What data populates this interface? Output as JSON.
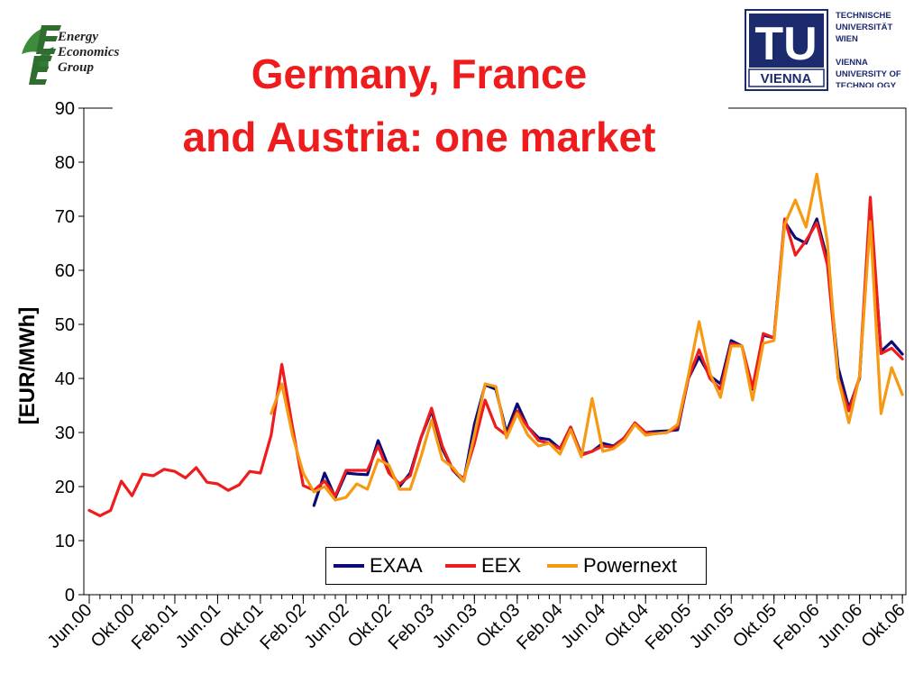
{
  "header": {
    "title_line1": "Germany, France",
    "title_line2": "and Austria: one market",
    "eeg_logo": {
      "line1": "Energy",
      "line2": "Economics",
      "line3": "Group",
      "icon": "leaf-e-logo"
    },
    "tu_logo": {
      "mark": "TU",
      "word": "VIENNA",
      "text_lines": [
        "TECHNISCHE",
        "UNIVERSITÄT",
        "WIEN",
        "VIENNA",
        "UNIVERSITY OF",
        "TECHNOLOGY"
      ],
      "color": "#1c2a6e"
    }
  },
  "chart_data": {
    "type": "line",
    "title": "Germany, France and Austria: one market",
    "xlabel": "",
    "ylabel": "[EUR/MWh]",
    "ylim": [
      0,
      90
    ],
    "yticks": [
      0,
      10,
      20,
      30,
      40,
      50,
      60,
      70,
      80,
      90
    ],
    "x_count": 77,
    "xtick_labels": [
      {
        "index": 0,
        "label": "Jun.00"
      },
      {
        "index": 4,
        "label": "Okt.00"
      },
      {
        "index": 8,
        "label": "Feb.01"
      },
      {
        "index": 12,
        "label": "Jun.01"
      },
      {
        "index": 16,
        "label": "Okt.01"
      },
      {
        "index": 20,
        "label": "Feb.02"
      },
      {
        "index": 24,
        "label": "Jun.02"
      },
      {
        "index": 28,
        "label": "Okt.02"
      },
      {
        "index": 32,
        "label": "Feb.03"
      },
      {
        "index": 36,
        "label": "Jun.03"
      },
      {
        "index": 40,
        "label": "Okt.03"
      },
      {
        "index": 44,
        "label": "Feb.04"
      },
      {
        "index": 48,
        "label": "Jun.04"
      },
      {
        "index": 52,
        "label": "Okt.04"
      },
      {
        "index": 56,
        "label": "Feb.05"
      },
      {
        "index": 60,
        "label": "Jun.05"
      },
      {
        "index": 64,
        "label": "Okt.05"
      },
      {
        "index": 68,
        "label": "Feb.06"
      },
      {
        "index": 72,
        "label": "Jun.06"
      },
      {
        "index": 76,
        "label": "Okt.06"
      }
    ],
    "grid": false,
    "legend_position": "bottom-center",
    "series": [
      {
        "name": "EXAA",
        "color": "#0a0a78",
        "start_index": 21,
        "values": [
          16.5,
          22.5,
          18.0,
          22.5,
          22.3,
          22.2,
          28.5,
          23.5,
          20.0,
          22.5,
          29.0,
          34.0,
          27.0,
          23.0,
          21.0,
          31.5,
          38.8,
          38.0,
          30.0,
          35.3,
          31.0,
          29.0,
          28.7,
          27.0,
          31.0,
          26.0,
          26.5,
          28.0,
          27.5,
          29.0,
          31.7,
          30.0,
          30.2,
          30.3,
          30.5,
          40.0,
          44.0,
          40.5,
          39.0,
          47.0,
          46.0,
          38.0,
          48.0,
          47.5,
          69.0,
          66.0,
          65.0,
          69.5,
          62.0,
          42.0,
          34.5,
          40.0,
          72.0,
          45.0,
          46.8,
          44.5
        ]
      },
      {
        "name": "EEX",
        "color": "#ee1c1c",
        "start_index": 0,
        "values": [
          15.6,
          14.6,
          15.6,
          21.0,
          18.3,
          22.3,
          22.0,
          23.2,
          22.8,
          21.6,
          23.5,
          20.8,
          20.5,
          19.3,
          20.3,
          22.8,
          22.5,
          29.5,
          42.6,
          31.0,
          20.2,
          19.3,
          21.0,
          18.3,
          23.0,
          23.0,
          23.0,
          27.5,
          22.5,
          20.5,
          22.0,
          29.0,
          34.5,
          27.5,
          23.0,
          21.5,
          28.0,
          36.0,
          31.0,
          29.5,
          34.0,
          31.0,
          28.5,
          28.0,
          27.0,
          31.0,
          25.8,
          26.5,
          27.5,
          27.3,
          29.0,
          31.8,
          30.0,
          29.8,
          30.0,
          31.0,
          40.0,
          45.3,
          40.0,
          38.0,
          46.5,
          46.0,
          38.3,
          48.3,
          47.5,
          69.5,
          62.8,
          65.5,
          68.8,
          61.0,
          40.0,
          34.0,
          40.3,
          73.5,
          44.6,
          45.6,
          43.6
        ]
      },
      {
        "name": "Powernext",
        "color": "#f59a12",
        "start_index": 17,
        "values": [
          33.5,
          39.0,
          29.5,
          22.5,
          19.0,
          20.0,
          17.5,
          18.0,
          20.5,
          19.5,
          25.0,
          24.0,
          19.5,
          19.5,
          25.5,
          32.3,
          25.0,
          23.5,
          21.0,
          29.5,
          39.0,
          38.5,
          29.0,
          33.5,
          29.5,
          27.5,
          28.0,
          26.0,
          30.5,
          25.5,
          36.3,
          26.5,
          27.0,
          28.5,
          31.5,
          29.5,
          29.8,
          30.0,
          31.5,
          40.5,
          50.5,
          41.0,
          36.5,
          46.0,
          46.0,
          36.0,
          46.5,
          47.0,
          68.5,
          73.0,
          68.0,
          77.8,
          65.0,
          40.0,
          31.8,
          40.5,
          69.0,
          33.5,
          42.0,
          37.0
        ]
      }
    ]
  }
}
